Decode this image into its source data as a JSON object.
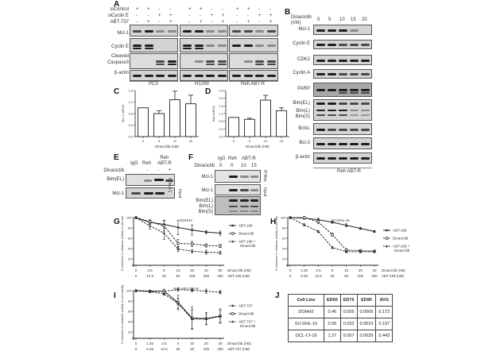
{
  "panels": {
    "A": {
      "label": "A",
      "conditions": [
        {
          "name": "siControl",
          "values": [
            "+",
            "+",
            "-",
            "-",
            "+",
            "+",
            "-",
            "-",
            "+",
            "+",
            "-",
            "-"
          ]
        },
        {
          "name": "siCyclin E",
          "values": [
            "-",
            "-",
            "+",
            "+",
            "-",
            "-",
            "+",
            "+",
            "-",
            "-",
            "+",
            "+"
          ]
        },
        {
          "name": "ABT-737",
          "values": [
            "-",
            "+",
            "-",
            "+",
            "-",
            "+",
            "-",
            "+",
            "-",
            "+",
            "-",
            "+"
          ]
        }
      ],
      "rows": [
        "Mcl-1",
        "Cyclin E",
        "Cleaved Caspase3",
        "β-actin"
      ],
      "groups": [
        "PC3",
        "H1299",
        "Reh  ABT-R"
      ]
    },
    "B": {
      "label": "B",
      "treatment": "Dinaciclib (nM)",
      "treatment_line1": "Dinaciclib",
      "treatment_line2": "(nM)",
      "doses": [
        "0",
        "5",
        "10",
        "15",
        "20"
      ],
      "rows": [
        "Mcl-1",
        "Cyclin E",
        "CDK2",
        "Cyclin A",
        "PARP",
        "Bim(EL)",
        "Bim(L)",
        "Bim(S)",
        "BclxL",
        "Bcl-2",
        "β-actin"
      ],
      "group": "Reh  ABT-R"
    },
    "E": {
      "label": "E",
      "columns": [
        "IgG",
        "Reh",
        "Reh ABT-R"
      ],
      "col_reh_abtr_line1": "Reh",
      "col_reh_abtr_line2": "ABT-R",
      "treatment": "Dinaciclib",
      "treatment_values": [
        "-",
        "-",
        "+"
      ],
      "rows": [
        "Bim(EL)",
        "Mcl-1"
      ],
      "side_labels": [
        "IP:Mcl-1",
        "Input"
      ]
    },
    "F": {
      "label": "F",
      "columns": [
        "IgG",
        "Reh",
        "ABT-R"
      ],
      "treatment": "Dinaciclib",
      "treatment_values": [
        "0",
        "0",
        "10",
        "15"
      ],
      "rows": [
        "Mcl-1",
        "Mcl-1",
        "Bim(EL)",
        "Bim(L)",
        "Bim(S)"
      ],
      "side_labels": [
        "IP:Bim",
        "Input"
      ]
    },
    "J": {
      "label": "J",
      "headers": [
        "Cell  Line",
        "ED50",
        "ED75",
        "ED90",
        "AVG"
      ],
      "rows": [
        [
          "DOHH2",
          "0.46",
          "0.055",
          "0.0069",
          "0.173"
        ],
        [
          "SU-DHL-16",
          "0.56",
          "0.032",
          "0.0019",
          "0.197"
        ],
        [
          "OCL-LY-19",
          "1.27",
          "0.057",
          "0.0029",
          "0.443"
        ]
      ]
    }
  },
  "chart_data": [
    {
      "id": "C",
      "type": "bar",
      "title": "",
      "categories": [
        "0",
        "5",
        "10",
        "15"
      ],
      "values": [
        1.0,
        0.8,
        1.28,
        1.14
      ],
      "errors": [
        0.0,
        0.1,
        0.3,
        0.3
      ],
      "xlabel": "Dinaciclib (nM)",
      "ylabel": "Mcl-1 mRNA",
      "ylim": [
        0,
        1.6
      ],
      "yticks": [
        "0.0",
        "0.4",
        "0.8",
        "1.2",
        "1.6"
      ],
      "grid": false
    },
    {
      "id": "D",
      "type": "bar",
      "title": "",
      "categories": [
        "0",
        "5",
        "10",
        "15"
      ],
      "values": [
        1.0,
        0.9,
        1.9,
        1.35
      ],
      "errors": [
        0.0,
        0.06,
        0.25,
        0.15
      ],
      "xlabel": "Dinaciclib (nM)",
      "ylabel": "Bim mRNA",
      "ylim": [
        0,
        2.4
      ],
      "yticks": [
        "0.0",
        "0.4",
        "0.8",
        "1.2",
        "1.6",
        "2.0",
        "2.4"
      ],
      "grid": false
    },
    {
      "id": "G",
      "type": "line",
      "title": "DOHH2",
      "x_dinaciclib": [
        "0",
        "2.5",
        "5",
        "10",
        "20",
        "40",
        "80"
      ],
      "x_partner": [
        "0",
        "12.5",
        "25",
        "50",
        "100",
        "200",
        "400"
      ],
      "xlabel_1": "Dinaciclib (nM)",
      "xlabel_2": "ABT-199 (nM)",
      "ylabel": "% reduction in metabolic activity or cell viability",
      "ylim": [
        20,
        100
      ],
      "yticks": [
        "20",
        "40",
        "60",
        "80",
        "100"
      ],
      "series": [
        {
          "name": "ABT-199",
          "style": "solid-filled",
          "values": [
            100,
            91,
            87,
            81,
            76,
            72,
            70
          ]
        },
        {
          "name": "Dinaciclib",
          "style": "dashed-open",
          "values": [
            100,
            92,
            84,
            50,
            49,
            46,
            45
          ]
        },
        {
          "name": "ABT-199 + Dinaciclib",
          "style": "dashed-tri",
          "values": [
            100,
            84,
            70,
            39,
            35,
            33,
            32
          ]
        }
      ],
      "legend_position": "right"
    },
    {
      "id": "H",
      "type": "line",
      "title": "SU-DHL-16",
      "x_dinaciclib": [
        "0",
        "1.25",
        "2.5",
        "5",
        "10",
        "20",
        "40"
      ],
      "x_partner": [
        "0",
        "6.25",
        "12.5",
        "25",
        "50",
        "100",
        "200"
      ],
      "xlabel_1": "Dinaciclib (nM)",
      "xlabel_2": "ABT-199 (nM)",
      "ylabel": "% reduction in metabolic activity or cell viability",
      "ylim": [
        20,
        100
      ],
      "yticks": [
        "20",
        "40",
        "60",
        "80",
        "100"
      ],
      "series": [
        {
          "name": "ABT-199",
          "style": "solid-filled",
          "values": [
            100,
            99,
            96,
            91,
            85,
            79,
            73
          ]
        },
        {
          "name": "Dinaciclib",
          "style": "dashed-open",
          "values": [
            100,
            100,
            92,
            67,
            37,
            36,
            35
          ]
        },
        {
          "name": "ABT-199 + Dinaciclib",
          "style": "dashed-tri",
          "values": [
            100,
            86,
            73,
            42,
            34,
            34,
            34
          ]
        }
      ],
      "legend_position": "right"
    },
    {
      "id": "I",
      "type": "line",
      "title": "Reh ABT-737-R",
      "x_dinaciclib": [
        "0",
        "1.25",
        "2.5",
        "5",
        "10",
        "20",
        "40"
      ],
      "x_partner": [
        "0",
        "6.25",
        "12.5",
        "25",
        "50",
        "100",
        "200"
      ],
      "xlabel_1": "Dinaciclib (nM)",
      "xlabel_2": "ABT-737 (nM)",
      "ylabel": "% reduction in metabolic activity or cell viability",
      "ylim": [
        20,
        100
      ],
      "yticks": [
        "20",
        "40",
        "60",
        "80",
        "100"
      ],
      "series": [
        {
          "name": "ABT-737",
          "style": "dashed-filled",
          "values": [
            100,
            99,
            99,
            102,
            101,
            99,
            97
          ]
        },
        {
          "name": "Dinaciclib",
          "style": "solid-open",
          "values": [
            100,
            99,
            99,
            77,
            47,
            46,
            51
          ]
        },
        {
          "name": "ABT-737 +Dinaciclib",
          "style": "dashed-tri",
          "values": [
            100,
            98,
            94,
            75,
            45,
            45,
            50
          ]
        }
      ],
      "legend_position": "right"
    }
  ]
}
